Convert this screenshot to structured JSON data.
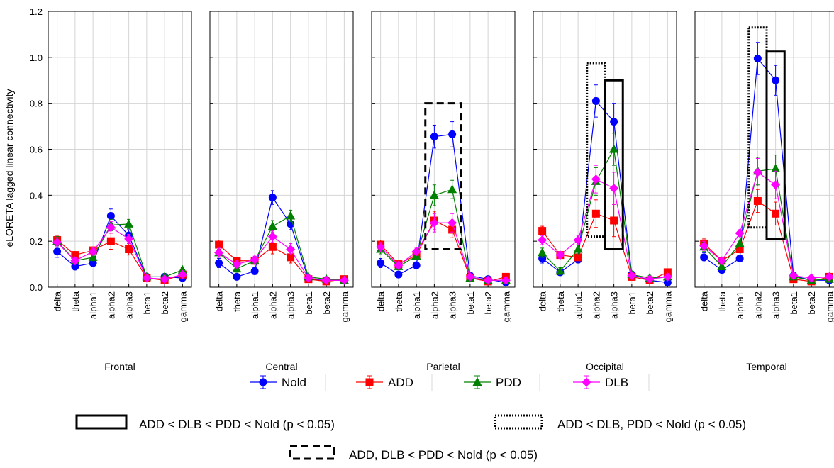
{
  "chart_data": {
    "type": "line",
    "ylabel": "eLORETA lagged linear connectivity",
    "ylim": [
      0.0,
      1.2
    ],
    "yticks": [
      "0.0",
      "0.2",
      "0.4",
      "0.6",
      "0.8",
      "1.0",
      "1.2"
    ],
    "categories": [
      "delta",
      "theta",
      "alpha1",
      "alpha2",
      "alpha3",
      "beta1",
      "beta2",
      "gamma"
    ],
    "grid": true,
    "legend_position": "bottom",
    "series_styles": [
      {
        "name": "Nold",
        "color": "#0000ff",
        "marker": "circle"
      },
      {
        "name": "ADD",
        "color": "#ff0000",
        "marker": "square"
      },
      {
        "name": "PDD",
        "color": "#008000",
        "marker": "triangle"
      },
      {
        "name": "DLB",
        "color": "#ff00ff",
        "marker": "diamond"
      }
    ],
    "panels": [
      {
        "region": "Frontal",
        "series": [
          {
            "name": "Nold",
            "values": [
              0.155,
              0.09,
              0.105,
              0.31,
              0.225,
              0.045,
              0.045,
              0.04
            ],
            "err": [
              0.025,
              0.015,
              0.015,
              0.03,
              0.025,
              0.01,
              0.01,
              0.01
            ]
          },
          {
            "name": "ADD",
            "values": [
              0.205,
              0.14,
              0.16,
              0.2,
              0.165,
              0.04,
              0.03,
              0.055
            ],
            "err": [
              0.02,
              0.015,
              0.015,
              0.035,
              0.025,
              0.01,
              0.01,
              0.01
            ]
          },
          {
            "name": "PDD",
            "values": [
              0.2,
              0.115,
              0.13,
              0.27,
              0.275,
              0.045,
              0.045,
              0.075
            ],
            "err": [
              0.02,
              0.015,
              0.015,
              0.025,
              0.02,
              0.01,
              0.01,
              0.01
            ]
          },
          {
            "name": "DLB",
            "values": [
              0.195,
              0.115,
              0.155,
              0.26,
              0.21,
              0.04,
              0.035,
              0.055
            ],
            "err": [
              0.02,
              0.015,
              0.015,
              0.025,
              0.02,
              0.01,
              0.01,
              0.01
            ]
          }
        ],
        "boxes": []
      },
      {
        "region": "Central",
        "series": [
          {
            "name": "Nold",
            "values": [
              0.105,
              0.045,
              0.07,
              0.39,
              0.275,
              0.035,
              0.03,
              0.03
            ],
            "err": [
              0.02,
              0.01,
              0.015,
              0.03,
              0.025,
              0.01,
              0.01,
              0.01
            ]
          },
          {
            "name": "ADD",
            "values": [
              0.185,
              0.115,
              0.115,
              0.175,
              0.13,
              0.035,
              0.025,
              0.035
            ],
            "err": [
              0.02,
              0.015,
              0.015,
              0.03,
              0.025,
              0.01,
              0.01,
              0.01
            ]
          },
          {
            "name": "PDD",
            "values": [
              0.15,
              0.08,
              0.115,
              0.265,
              0.31,
              0.045,
              0.035,
              0.03
            ],
            "err": [
              0.02,
              0.015,
              0.015,
              0.025,
              0.025,
              0.01,
              0.01,
              0.01
            ]
          },
          {
            "name": "DLB",
            "values": [
              0.15,
              0.1,
              0.12,
              0.22,
              0.165,
              0.04,
              0.03,
              0.03
            ],
            "err": [
              0.02,
              0.015,
              0.015,
              0.025,
              0.025,
              0.01,
              0.01,
              0.01
            ]
          }
        ],
        "boxes": []
      },
      {
        "region": "Parietal",
        "series": [
          {
            "name": "Nold",
            "values": [
              0.105,
              0.055,
              0.095,
              0.655,
              0.665,
              0.05,
              0.035,
              0.02
            ],
            "err": [
              0.02,
              0.01,
              0.015,
              0.05,
              0.055,
              0.01,
              0.01,
              0.01
            ]
          },
          {
            "name": "ADD",
            "values": [
              0.185,
              0.1,
              0.14,
              0.29,
              0.25,
              0.04,
              0.025,
              0.045
            ],
            "err": [
              0.02,
              0.015,
              0.015,
              0.04,
              0.035,
              0.01,
              0.01,
              0.01
            ]
          },
          {
            "name": "PDD",
            "values": [
              0.165,
              0.09,
              0.135,
              0.4,
              0.425,
              0.04,
              0.03,
              0.03
            ],
            "err": [
              0.02,
              0.015,
              0.015,
              0.045,
              0.04,
              0.01,
              0.01,
              0.01
            ]
          },
          {
            "name": "DLB",
            "values": [
              0.175,
              0.095,
              0.155,
              0.28,
              0.28,
              0.045,
              0.03,
              0.03
            ],
            "err": [
              0.02,
              0.015,
              0.015,
              0.04,
              0.04,
              0.01,
              0.01,
              0.01
            ]
          }
        ],
        "boxes": [
          {
            "style": "dashed",
            "from": "alpha2",
            "to": "alpha3",
            "y0": 0.165,
            "y1": 0.8
          }
        ]
      },
      {
        "region": "Occipital",
        "series": [
          {
            "name": "Nold",
            "values": [
              0.125,
              0.065,
              0.12,
              0.81,
              0.72,
              0.055,
              0.03,
              0.02
            ],
            "err": [
              0.02,
              0.01,
              0.015,
              0.07,
              0.08,
              0.01,
              0.01,
              0.01
            ]
          },
          {
            "name": "ADD",
            "values": [
              0.245,
              0.14,
              0.13,
              0.32,
              0.29,
              0.045,
              0.03,
              0.065
            ],
            "err": [
              0.02,
              0.015,
              0.015,
              0.06,
              0.07,
              0.01,
              0.01,
              0.01
            ]
          },
          {
            "name": "PDD",
            "values": [
              0.15,
              0.07,
              0.165,
              0.46,
              0.6,
              0.055,
              0.04,
              0.045
            ],
            "err": [
              0.02,
              0.015,
              0.02,
              0.06,
              0.07,
              0.01,
              0.01,
              0.01
            ]
          },
          {
            "name": "DLB",
            "values": [
              0.205,
              0.14,
              0.205,
              0.47,
              0.43,
              0.05,
              0.035,
              0.045
            ],
            "err": [
              0.02,
              0.015,
              0.02,
              0.06,
              0.07,
              0.01,
              0.01,
              0.01
            ]
          }
        ],
        "boxes": [
          {
            "style": "dotted",
            "from": "alpha2",
            "to": "alpha2",
            "y0": 0.22,
            "y1": 0.975
          },
          {
            "style": "solid",
            "from": "alpha3",
            "to": "alpha3",
            "y0": 0.165,
            "y1": 0.9
          }
        ]
      },
      {
        "region": "Temporal",
        "series": [
          {
            "name": "Nold",
            "values": [
              0.13,
              0.075,
              0.125,
              0.995,
              0.9,
              0.05,
              0.03,
              0.03
            ],
            "err": [
              0.02,
              0.01,
              0.015,
              0.07,
              0.065,
              0.01,
              0.01,
              0.01
            ]
          },
          {
            "name": "ADD",
            "values": [
              0.19,
              0.115,
              0.165,
              0.375,
              0.32,
              0.035,
              0.025,
              0.045
            ],
            "err": [
              0.02,
              0.015,
              0.015,
              0.05,
              0.05,
              0.01,
              0.01,
              0.01
            ]
          },
          {
            "name": "PDD",
            "values": [
              0.175,
              0.09,
              0.19,
              0.505,
              0.515,
              0.045,
              0.03,
              0.035
            ],
            "err": [
              0.02,
              0.015,
              0.015,
              0.06,
              0.06,
              0.01,
              0.01,
              0.01
            ]
          },
          {
            "name": "DLB",
            "values": [
              0.18,
              0.115,
              0.235,
              0.5,
              0.445,
              0.05,
              0.04,
              0.045
            ],
            "err": [
              0.02,
              0.015,
              0.015,
              0.06,
              0.06,
              0.01,
              0.01,
              0.01
            ]
          }
        ],
        "boxes": [
          {
            "style": "dotted",
            "from": "alpha2",
            "to": "alpha2",
            "y0": 0.26,
            "y1": 1.13
          },
          {
            "style": "solid",
            "from": "alpha3",
            "to": "alpha3",
            "y0": 0.21,
            "y1": 1.025
          }
        ]
      }
    ],
    "box_legend": [
      {
        "style": "solid",
        "label": "ADD < DLB < PDD < Nold (p < 0.05)"
      },
      {
        "style": "dotted",
        "label": "ADD < DLB, PDD < Nold (p < 0.05)"
      },
      {
        "style": "dashed",
        "label": "ADD, DLB < PDD < Nold (p < 0.05)"
      }
    ]
  }
}
